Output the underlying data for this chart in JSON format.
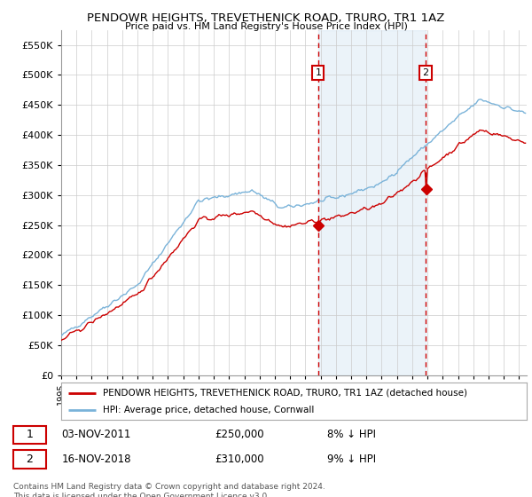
{
  "title": "PENDOWR HEIGHTS, TREVETHENICK ROAD, TRURO, TR1 1AZ",
  "subtitle": "Price paid vs. HM Land Registry's House Price Index (HPI)",
  "legend_line1": "PENDOWR HEIGHTS, TREVETHENICK ROAD, TRURO, TR1 1AZ (detached house)",
  "legend_line2": "HPI: Average price, detached house, Cornwall",
  "annotation1_date": "03-NOV-2011",
  "annotation1_price": "£250,000",
  "annotation1_hpi": "8% ↓ HPI",
  "annotation2_date": "16-NOV-2018",
  "annotation2_price": "£310,000",
  "annotation2_hpi": "9% ↓ HPI",
  "footnote": "Contains HM Land Registry data © Crown copyright and database right 2024.\nThis data is licensed under the Open Government Licence v3.0.",
  "purchase1_year": 2011.84,
  "purchase1_value": 250000,
  "purchase2_year": 2018.88,
  "purchase2_value": 310000,
  "ylim": [
    0,
    575000
  ],
  "xlim_start": 1995.0,
  "xlim_end": 2025.5,
  "background_color": "#ffffff",
  "plot_bg_color": "#ffffff",
  "shading_color": "#ddeeff",
  "grid_color": "#cccccc",
  "hpi_line_color": "#7ab3d9",
  "property_line_color": "#cc0000",
  "dashed_line_color": "#cc0000",
  "marker_color": "#cc0000",
  "annotation_box_color": "#cc0000"
}
